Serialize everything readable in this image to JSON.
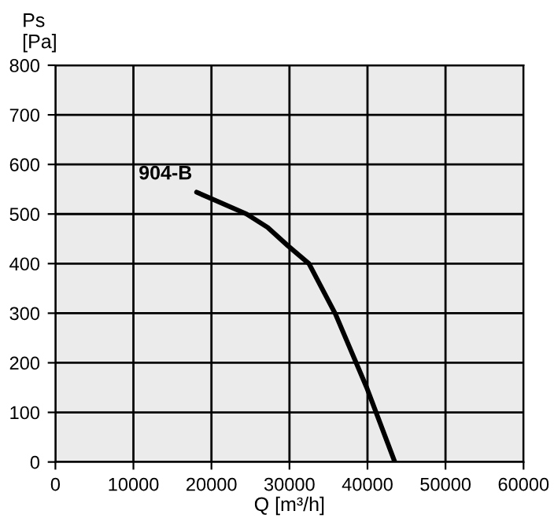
{
  "chart_data": {
    "type": "line",
    "xlabel": "Q [m³/h]",
    "ylabel": "Ps\n[Pa]",
    "xlim": [
      0,
      60000
    ],
    "ylim": [
      0,
      800
    ],
    "xticks": [
      0,
      10000,
      20000,
      30000,
      40000,
      50000,
      60000
    ],
    "yticks": [
      0,
      100,
      200,
      300,
      400,
      500,
      600,
      700,
      800
    ],
    "grid": true,
    "marker": "none",
    "line_style": "solid",
    "x": [
      18100,
      24500,
      27200,
      29800,
      32500,
      35900,
      37900,
      39900,
      43500
    ],
    "series": [
      {
        "name": "904-B",
        "color": "#000000",
        "values": [
          544,
          500,
          473,
          436,
          400,
          298,
          224,
          150,
          0
        ]
      }
    ]
  }
}
